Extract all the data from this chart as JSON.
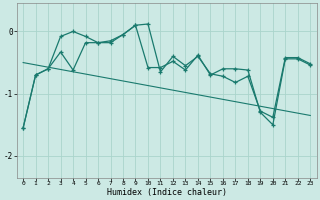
{
  "xlabel": "Humidex (Indice chaleur)",
  "background_color": "#cce9e4",
  "grid_color": "#aad4cc",
  "line_color": "#1a7a6e",
  "xlim": [
    -0.5,
    23.5
  ],
  "ylim": [
    -2.35,
    0.45
  ],
  "yticks": [
    0,
    -1,
    -2
  ],
  "xticks": [
    0,
    1,
    2,
    3,
    4,
    5,
    6,
    7,
    8,
    9,
    10,
    11,
    12,
    13,
    14,
    15,
    16,
    17,
    18,
    19,
    20,
    21,
    22,
    23
  ],
  "series1_x": [
    0,
    1,
    2,
    3,
    4,
    5,
    6,
    7,
    8,
    9,
    10,
    11,
    12,
    13,
    14,
    15,
    16,
    17,
    18,
    19,
    20,
    21,
    22,
    23
  ],
  "series1_y": [
    -1.55,
    -0.7,
    -0.6,
    -0.08,
    0.0,
    -0.08,
    -0.18,
    -0.15,
    -0.05,
    0.1,
    0.12,
    -0.65,
    -0.4,
    -0.55,
    -0.4,
    -0.68,
    -0.72,
    -0.82,
    -0.72,
    -1.28,
    -1.38,
    -0.42,
    -0.42,
    -0.52
  ],
  "series2_x": [
    0,
    1,
    2,
    3,
    4,
    5,
    6,
    7,
    8,
    9,
    10,
    11,
    12,
    13,
    14,
    15,
    16,
    17,
    18,
    19,
    20,
    21,
    22,
    23
  ],
  "series2_y": [
    -1.55,
    -0.7,
    -0.6,
    -0.33,
    -0.62,
    -0.18,
    -0.18,
    -0.18,
    -0.05,
    0.1,
    -0.58,
    -0.58,
    -0.48,
    -0.62,
    -0.38,
    -0.7,
    -0.6,
    -0.6,
    -0.62,
    -1.3,
    -1.5,
    -0.44,
    -0.44,
    -0.54
  ],
  "trend_x": [
    0,
    23
  ],
  "trend_y": [
    -0.5,
    -1.35
  ]
}
